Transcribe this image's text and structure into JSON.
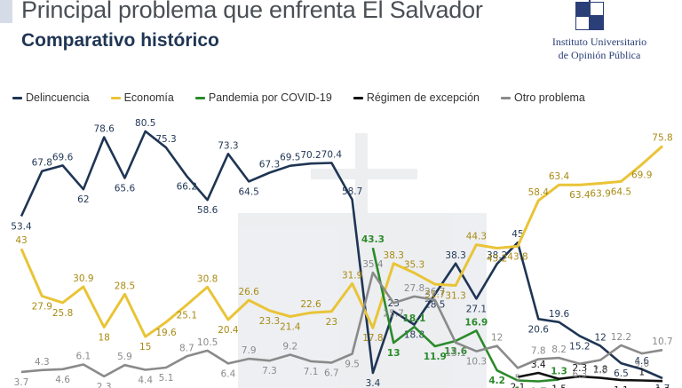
{
  "header": {
    "title": "Principal problema que enfrenta El Salvador",
    "subtitle": "Comparativo histórico"
  },
  "logo": {
    "icon": "uca-owl-logo-icon",
    "line1": "Instituto Universitario",
    "line2": "de Opinión Pública"
  },
  "chart_data": {
    "type": "line",
    "title": "Principal problema que enfrenta El Salvador",
    "subtitle": "Comparativo histórico",
    "xlabel": "",
    "ylabel": "",
    "ylim": [
      0,
      85
    ],
    "grid": false,
    "legend_position": "top",
    "x": [
      1,
      2,
      3,
      4,
      5,
      6,
      7,
      8,
      9,
      10,
      11,
      12,
      13,
      14,
      15,
      16,
      17,
      18,
      19,
      20,
      21,
      22,
      23,
      24,
      25,
      26,
      27,
      28,
      29,
      30,
      31,
      32
    ],
    "series": [
      {
        "name": "Delincuencia",
        "color": "#1f3554",
        "values": [
          53.4,
          67.8,
          69.6,
          62,
          78.6,
          65.6,
          80.5,
          75.3,
          66.2,
          58.6,
          73.3,
          64.5,
          67.3,
          69.5,
          70.2,
          70.4,
          58.7,
          3.4,
          23,
          18.8,
          28.5,
          38.3,
          27.1,
          38.2,
          45,
          20.6,
          19.6,
          15.2,
          12,
          6.5,
          4.6,
          1.7
        ]
      },
      {
        "name": "Economía",
        "color": "#e9c437",
        "label_color": "#a88a12",
        "values": [
          43,
          27.9,
          25.8,
          30.9,
          18,
          28.5,
          15,
          19.6,
          25.1,
          30.8,
          20.4,
          26.6,
          23.3,
          21.4,
          22.6,
          23,
          31.9,
          17.8,
          38.3,
          35.3,
          31.7,
          31.3,
          44.3,
          43.2,
          43.8,
          58.4,
          63.4,
          63.4,
          63.9,
          64.5,
          69.9,
          75.8
        ]
      },
      {
        "name": "Pandemia por COVID-19",
        "color": "#2b8a2b",
        "values": [
          null,
          null,
          null,
          null,
          null,
          null,
          null,
          null,
          null,
          null,
          null,
          null,
          null,
          null,
          null,
          null,
          null,
          43.3,
          13,
          18.1,
          11.9,
          13.6,
          16.9,
          4.2,
          1,
          0.7,
          1.3,
          null,
          null,
          null,
          null,
          null
        ]
      },
      {
        "name": "Régimen de excepción",
        "color": "#111111",
        "values": [
          null,
          null,
          null,
          null,
          null,
          null,
          null,
          null,
          null,
          null,
          null,
          null,
          null,
          null,
          null,
          null,
          null,
          null,
          null,
          null,
          null,
          null,
          null,
          null,
          2.1,
          3.4,
          1.5,
          2.3,
          1.8,
          1.1,
          1,
          0.8
        ]
      },
      {
        "name": "Otro problema",
        "color": "#8a8a8a",
        "values": [
          3.7,
          4.3,
          4.6,
          6.1,
          2.3,
          5.9,
          4.4,
          5.1,
          8.7,
          10.5,
          6.4,
          7.9,
          7.3,
          9.2,
          7.1,
          6.7,
          9.5,
          35.4,
          25.7,
          27.8,
          26.7,
          13.1,
          10.3,
          12,
          5,
          7.8,
          8.2,
          6.3,
          7.5,
          12.2,
          9.6,
          10.7
        ]
      }
    ]
  }
}
